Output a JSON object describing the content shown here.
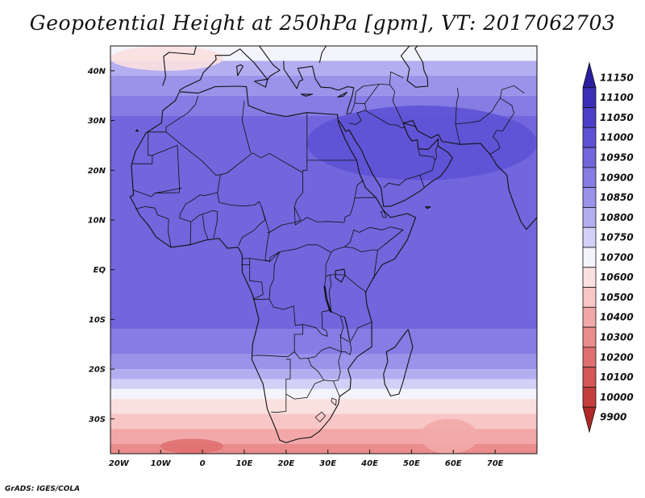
{
  "title": "Geopotential Height at 250hPa [gpm], VT: 2017062703",
  "credit": "GrADS: IGES/COLA",
  "map": {
    "lon_range": [
      -22,
      80
    ],
    "lat_range": [
      -37,
      45
    ],
    "lat_labels": [
      {
        "lat": 40,
        "text": "40N"
      },
      {
        "lat": 30,
        "text": "30N"
      },
      {
        "lat": 20,
        "text": "20N"
      },
      {
        "lat": 10,
        "text": "10N"
      },
      {
        "lat": 0,
        "text": "EQ"
      },
      {
        "lat": -10,
        "text": "10S"
      },
      {
        "lat": -20,
        "text": "20S"
      },
      {
        "lat": -30,
        "text": "30S"
      }
    ],
    "lon_labels": [
      {
        "lon": -20,
        "text": "20W"
      },
      {
        "lon": -10,
        "text": "10W"
      },
      {
        "lon": 0,
        "text": "0"
      },
      {
        "lon": 10,
        "text": "10E"
      },
      {
        "lon": 20,
        "text": "20E"
      },
      {
        "lon": 30,
        "text": "30E"
      },
      {
        "lon": 40,
        "text": "40E"
      },
      {
        "lon": 50,
        "text": "50E"
      },
      {
        "lon": 60,
        "text": "60E"
      },
      {
        "lon": 70,
        "text": "70E"
      }
    ]
  },
  "field_bands": [
    {
      "lat_top": 45,
      "lat_bottom": 42,
      "value": 10700
    },
    {
      "lat_top": 42,
      "lat_bottom": 39,
      "value": 10800
    },
    {
      "lat_top": 39,
      "lat_bottom": 35,
      "value": 10850
    },
    {
      "lat_top": 35,
      "lat_bottom": 31,
      "value": 10900
    },
    {
      "lat_top": 31,
      "lat_bottom": -12,
      "value": 10950
    },
    {
      "lat_top": -12,
      "lat_bottom": -17,
      "value": 10900
    },
    {
      "lat_top": -17,
      "lat_bottom": -20,
      "value": 10850
    },
    {
      "lat_top": -20,
      "lat_bottom": -22,
      "value": 10800
    },
    {
      "lat_top": -22,
      "lat_bottom": -24,
      "value": 10750
    },
    {
      "lat_top": -24,
      "lat_bottom": -26,
      "value": 10700
    },
    {
      "lat_top": -26,
      "lat_bottom": -29,
      "value": 10600
    },
    {
      "lat_top": -29,
      "lat_bottom": -32,
      "value": 10500
    },
    {
      "lat_top": -32,
      "lat_bottom": -35,
      "value": 10400
    },
    {
      "lat_top": -35,
      "lat_bottom": -37,
      "value": 10300
    }
  ],
  "field_features": [
    {
      "name": "subtropical-high-core",
      "lon_range": [
        25,
        80
      ],
      "lat_range": [
        18,
        33
      ],
      "value": 11000
    },
    {
      "name": "mediterranean-trough",
      "lon_range": [
        -22,
        5
      ],
      "lat_range": [
        40,
        45
      ],
      "value": 10600
    },
    {
      "name": "south-indian-low",
      "lon_range": [
        52,
        66
      ],
      "lat_range": [
        -37,
        -30
      ],
      "value": 10400
    },
    {
      "name": "south-atlantic-low",
      "lon_range": [
        -10,
        5
      ],
      "lat_range": [
        -37,
        -34
      ],
      "value": 10200
    }
  ],
  "colorbar": {
    "levels": [
      "11150",
      "11100",
      "11050",
      "11000",
      "10950",
      "10900",
      "10850",
      "10800",
      "10750",
      "10700",
      "10600",
      "10500",
      "10400",
      "10300",
      "10200",
      "10100",
      "10000",
      "9900"
    ],
    "colors": [
      "#2a1f9c",
      "#3a30b8",
      "#4a40c8",
      "#5d52d4",
      "#7166dc",
      "#857ce4",
      "#9a93ea",
      "#b3aef0",
      "#d2d0f6",
      "#f4f4fc",
      "#fbe0e0",
      "#f8c6c6",
      "#f2a8a8",
      "#ea8c8c",
      "#e07070",
      "#d45656",
      "#c43e3e",
      "#b02828"
    ]
  },
  "colors": {
    "coast": "#111111",
    "frame": "#111111"
  }
}
